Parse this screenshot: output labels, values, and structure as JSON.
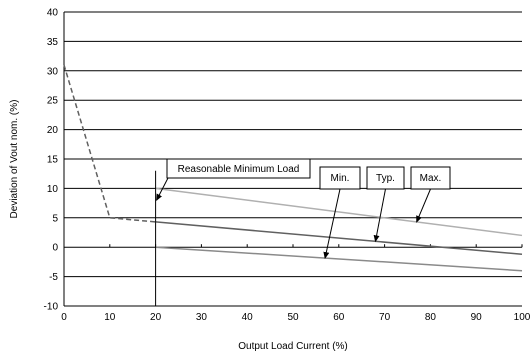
{
  "chart_data": {
    "type": "line",
    "xlabel": "Output Load Current (%)",
    "ylabel": "Deviation of Vout nom. (%)",
    "xlim": [
      0,
      100
    ],
    "ylim": [
      -10,
      40
    ],
    "x_ticks": [
      "0",
      "10",
      "20",
      "30",
      "40",
      "50",
      "60",
      "70",
      "80",
      "90",
      "100"
    ],
    "y_ticks": [
      "40",
      "35",
      "30",
      "25",
      "20",
      "15",
      "10",
      "5",
      "0",
      "-5",
      "-10"
    ],
    "grid": "horizontal",
    "series": [
      {
        "name": "Max.",
        "color": "#b0b0b0",
        "style": "solid",
        "points": [
          [
            20,
            10
          ],
          [
            100,
            2
          ]
        ]
      },
      {
        "name": "Typ.",
        "color": "#606060",
        "style": "solid",
        "points": [
          [
            20,
            4.3
          ],
          [
            100,
            -1.2
          ]
        ]
      },
      {
        "name": "Min.",
        "color": "#8a8a8a",
        "style": "solid",
        "points": [
          [
            20,
            0
          ],
          [
            100,
            -4
          ]
        ]
      },
      {
        "name": "",
        "color": "#606060",
        "style": "dashed",
        "points": [
          [
            0,
            31
          ],
          [
            10,
            5
          ],
          [
            20,
            4.3
          ]
        ]
      }
    ],
    "annotations": {
      "reasonable_min_load": {
        "text": "Reasonable Minimum Load",
        "x": 20,
        "y_top": 13
      },
      "labels": [
        {
          "text": "Min.",
          "target_series": "Min."
        },
        {
          "text": "Typ.",
          "target_series": "Typ."
        },
        {
          "text": "Max.",
          "target_series": "Max."
        }
      ]
    }
  }
}
